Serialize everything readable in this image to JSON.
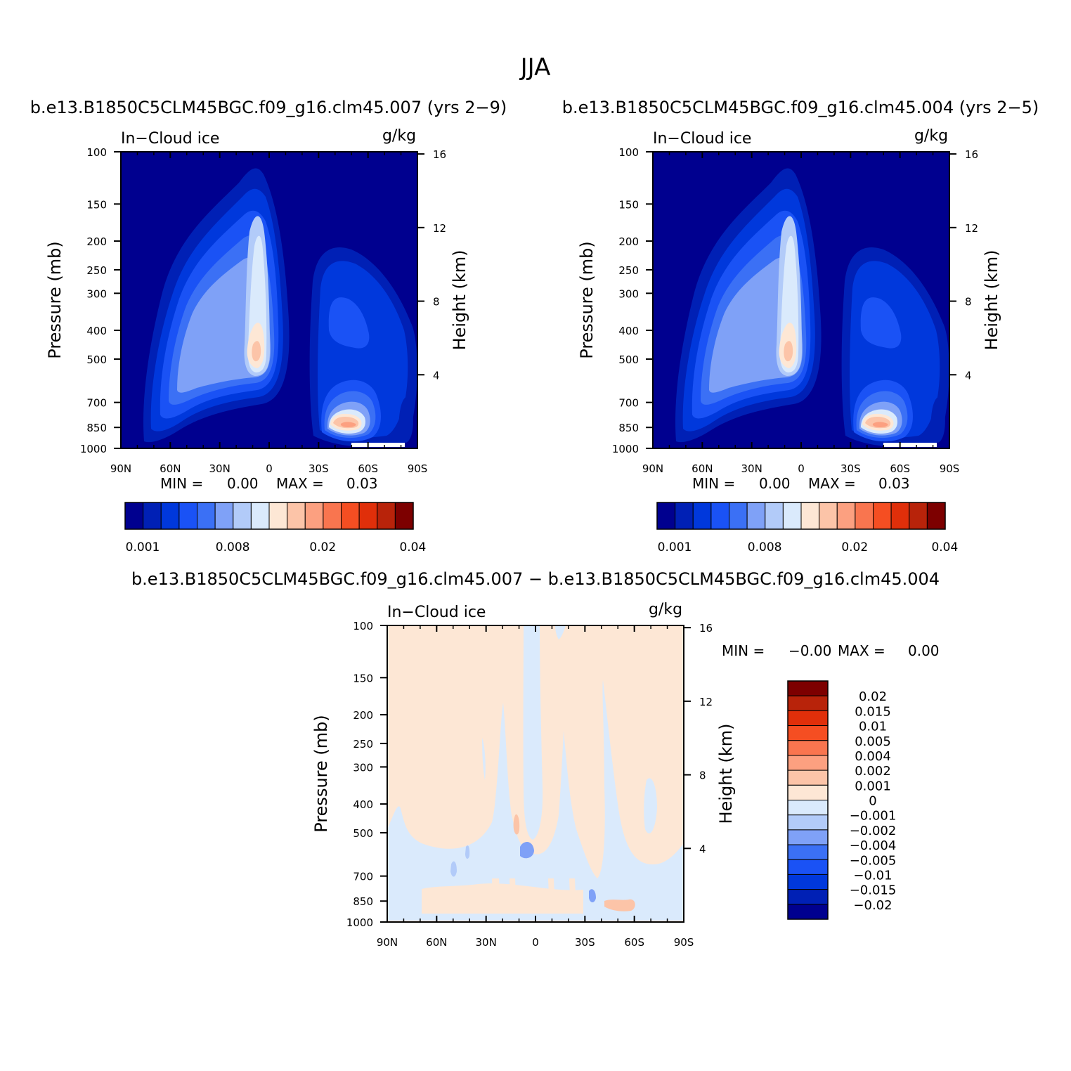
{
  "page": {
    "title": "JJA",
    "panel_a_title": "b.e13.B1850C5CLM45BGC.f09_g16.clm45.007 (yrs 2−9)",
    "panel_b_title": "b.e13.B1850C5CLM45BGC.f09_g16.clm45.004 (yrs 2−5)",
    "panel_c_title": "b.e13.B1850C5CLM45BGC.f09_g16.clm45.007 − b.e13.B1850C5CLM45BGC.f09_g16.clm45.004"
  },
  "colors": {
    "positive_scale": [
      "#00008f",
      "#0020b5",
      "#0038dc",
      "#1a52f5",
      "#3b70f5",
      "#7fa1f7",
      "#b2cbf9",
      "#daeafc",
      "#fde7d5",
      "#fcc4a8",
      "#fca080",
      "#f9754f",
      "#f54e22",
      "#e02f0a",
      "#b8230a",
      "#7d0000"
    ],
    "diff_scale": [
      "#00008f",
      "#0020b5",
      "#0038dc",
      "#1a52f5",
      "#3b70f5",
      "#7fa1f7",
      "#b2cbf9",
      "#daeafc",
      "#fde7d5",
      "#fcc4a8",
      "#fca080",
      "#f9754f",
      "#f54e22",
      "#e02f0a",
      "#b8230a",
      "#7d0000"
    ]
  },
  "chart_data": [
    {
      "type": "heatmap",
      "id": "panel_a",
      "variable": "In−Cloud ice",
      "units": "g/kg",
      "ylabel": "Pressure (mb)",
      "y2label": "Height (km)",
      "x_ticks": [
        "90N",
        "60N",
        "30N",
        "0",
        "30S",
        "60S",
        "90S"
      ],
      "y_ticks": [
        "100",
        "150",
        "200",
        "250",
        "300",
        "400",
        "500",
        "700",
        "850",
        "1000"
      ],
      "y2_ticks": [
        "16",
        "12",
        "8",
        "4"
      ],
      "xlim": [
        90,
        -90
      ],
      "ylim": [
        1000,
        100
      ],
      "y_scale": "log",
      "min_label": "MIN =",
      "min_value": "0.00",
      "max_label": "MAX =",
      "max_value": "0.03",
      "colorbar_labels": [
        "0.001",
        "0.008",
        "0.02",
        "0.04"
      ],
      "features": [
        {
          "lat": -5,
          "p": 500,
          "value": 0.025
        },
        {
          "lat": 30,
          "p": 550,
          "value": 0.008
        },
        {
          "lat": -55,
          "p": 850,
          "value": 0.03
        },
        {
          "lat": -45,
          "p": 400,
          "value": 0.005
        }
      ]
    },
    {
      "type": "heatmap",
      "id": "panel_b",
      "variable": "In−Cloud ice",
      "units": "g/kg",
      "ylabel": "Pressure (mb)",
      "y2label": "Height (km)",
      "x_ticks": [
        "90N",
        "60N",
        "30N",
        "0",
        "30S",
        "60S",
        "90S"
      ],
      "y_ticks": [
        "100",
        "150",
        "200",
        "250",
        "300",
        "400",
        "500",
        "700",
        "850",
        "1000"
      ],
      "y2_ticks": [
        "16",
        "12",
        "8",
        "4"
      ],
      "xlim": [
        90,
        -90
      ],
      "ylim": [
        1000,
        100
      ],
      "y_scale": "log",
      "min_label": "MIN =",
      "min_value": "0.00",
      "max_label": "MAX =",
      "max_value": "0.03",
      "colorbar_labels": [
        "0.001",
        "0.008",
        "0.02",
        "0.04"
      ],
      "features": [
        {
          "lat": -5,
          "p": 500,
          "value": 0.025
        },
        {
          "lat": 30,
          "p": 550,
          "value": 0.008
        },
        {
          "lat": -55,
          "p": 850,
          "value": 0.03
        },
        {
          "lat": -45,
          "p": 400,
          "value": 0.005
        }
      ]
    },
    {
      "type": "heatmap",
      "id": "panel_c",
      "variable": "In−Cloud ice",
      "units": "g/kg",
      "ylabel": "Pressure (mb)",
      "y2label": "Height (km)",
      "x_ticks": [
        "90N",
        "60N",
        "30N",
        "0",
        "30S",
        "60S",
        "90S"
      ],
      "y_ticks": [
        "100",
        "150",
        "200",
        "250",
        "300",
        "400",
        "500",
        "700",
        "850",
        "1000"
      ],
      "y2_ticks": [
        "16",
        "12",
        "8",
        "4"
      ],
      "xlim": [
        90,
        -90
      ],
      "ylim": [
        1000,
        100
      ],
      "y_scale": "log",
      "min_label": "MIN =",
      "min_value": "−0.00",
      "max_label": "MAX =",
      "max_value": "0.00",
      "colorbar_labels": [
        "0.02",
        "0.015",
        "0.01",
        "0.005",
        "0.004",
        "0.002",
        "0.001",
        "0",
        "−0.001",
        "−0.002",
        "−0.004",
        "−0.005",
        "−0.01",
        "−0.015",
        "−0.02"
      ]
    }
  ]
}
